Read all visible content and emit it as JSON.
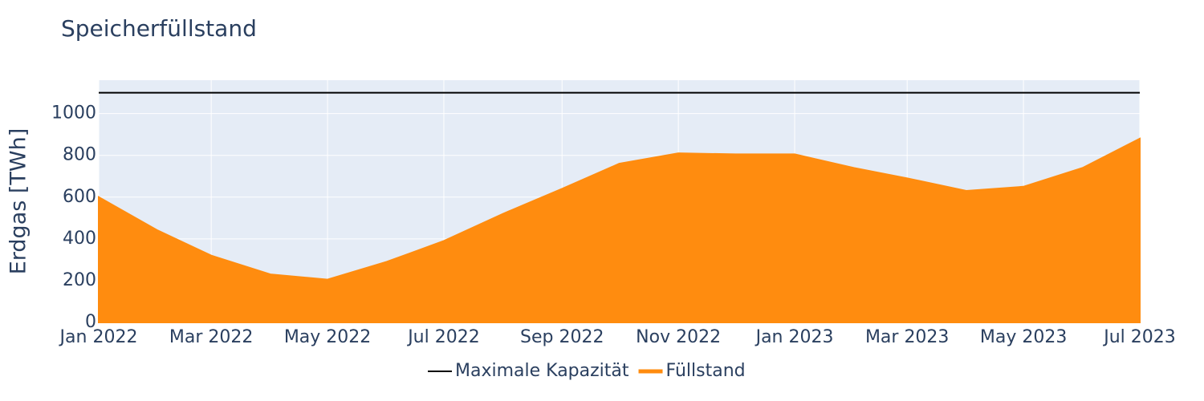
{
  "chart_data": {
    "type": "area",
    "title": "Speicherfüllstand",
    "y_label": "Erdgas [TWh]",
    "x": [
      "2022-01",
      "2022-02",
      "2022-03",
      "2022-04",
      "2022-05",
      "2022-06",
      "2022-07",
      "2022-08",
      "2022-09",
      "2022-10",
      "2022-11",
      "2022-12",
      "2023-01",
      "2023-02",
      "2023-03",
      "2023-04",
      "2023-05",
      "2023-06",
      "2023-07"
    ],
    "series": [
      {
        "name": "Maximale Kapazität",
        "color": "#000000",
        "kind": "line",
        "values": [
          1100,
          1100,
          1100,
          1100,
          1100,
          1100,
          1100,
          1100,
          1100,
          1100,
          1100,
          1100,
          1100,
          1100,
          1100,
          1100,
          1100,
          1100,
          1100
        ]
      },
      {
        "name": "Füllstand",
        "color": "#ff8c0f",
        "kind": "area",
        "values": [
          600,
          440,
          320,
          230,
          205,
          290,
          390,
          520,
          640,
          760,
          810,
          805,
          805,
          740,
          690,
          630,
          650,
          740,
          880
        ]
      }
    ],
    "xlim": [
      "2022-01",
      "2023-07"
    ],
    "xticks": [
      {
        "value": "2022-01",
        "label": "Jan 2022"
      },
      {
        "value": "2022-03",
        "label": "Mar 2022"
      },
      {
        "value": "2022-05",
        "label": "May 2022"
      },
      {
        "value": "2022-07",
        "label": "Jul 2022"
      },
      {
        "value": "2022-09",
        "label": "Sep 2022"
      },
      {
        "value": "2022-11",
        "label": "Nov 2022"
      },
      {
        "value": "2023-01",
        "label": "Jan 2023"
      },
      {
        "value": "2023-03",
        "label": "Mar 2023"
      },
      {
        "value": "2023-05",
        "label": "May 2023"
      },
      {
        "value": "2023-07",
        "label": "Jul 2023"
      }
    ],
    "ylim": [
      0,
      1160
    ],
    "yticks": [
      0,
      200,
      400,
      600,
      800,
      1000
    ],
    "grid": true,
    "legend": "bottom"
  }
}
